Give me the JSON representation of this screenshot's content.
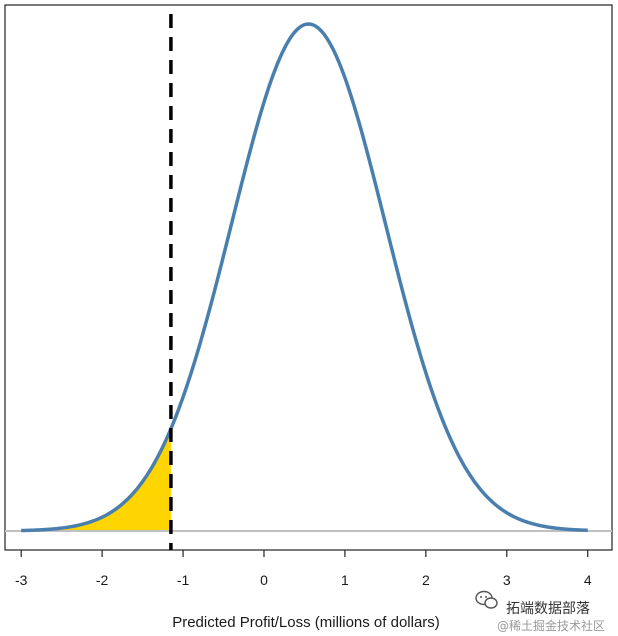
{
  "chart_data": {
    "type": "area",
    "xlabel": "Predicted Profit/Loss (millions of dollars)",
    "ylabel": "",
    "xlim": [
      -3.2,
      4.3
    ],
    "x_ticks": [
      -3,
      -2,
      -1,
      0,
      1,
      2,
      3,
      4
    ],
    "y_axis_shown": false,
    "distribution": {
      "kind": "normal",
      "mean": 0.55,
      "sd": 0.95,
      "x_range": [
        -3.0,
        4.0
      ],
      "line_color": "#4a7fad"
    },
    "threshold": {
      "x": -1.15,
      "style": "dashed",
      "color": "#000000"
    },
    "shaded_tail": {
      "from_x": -2.6,
      "to_x": -1.15,
      "color": "#ffd500"
    },
    "baseline_color": "#c0c0c0",
    "grid": false
  },
  "watermark": {
    "icon": "wechat-icon",
    "main_text": "拓端数据部落",
    "sub_text": "@稀土掘金技术社区"
  }
}
